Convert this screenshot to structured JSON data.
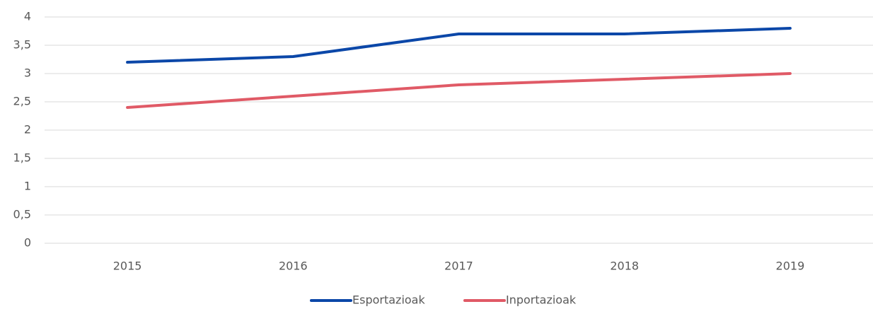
{
  "chart_data": {
    "type": "line",
    "categories": [
      "2015",
      "2016",
      "2017",
      "2018",
      "2019"
    ],
    "series": [
      {
        "name": "Esportazioak",
        "color": "#0b47a8",
        "values": [
          3.2,
          3.3,
          3.7,
          3.7,
          3.8
        ]
      },
      {
        "name": "Inportazioak",
        "color": "#e05a66",
        "values": [
          2.4,
          2.6,
          2.8,
          2.9,
          3.0
        ]
      }
    ],
    "ylim": [
      0,
      4
    ],
    "yticks": [
      0,
      {
        "value": 0.5,
        "label": "0,5"
      },
      1,
      {
        "value": 1.5,
        "label": "1,5"
      },
      2,
      {
        "value": 2.5,
        "label": "2,5"
      },
      3,
      {
        "value": 3.5,
        "label": "3,5"
      },
      4
    ],
    "grid": true,
    "legend": "bottom"
  }
}
